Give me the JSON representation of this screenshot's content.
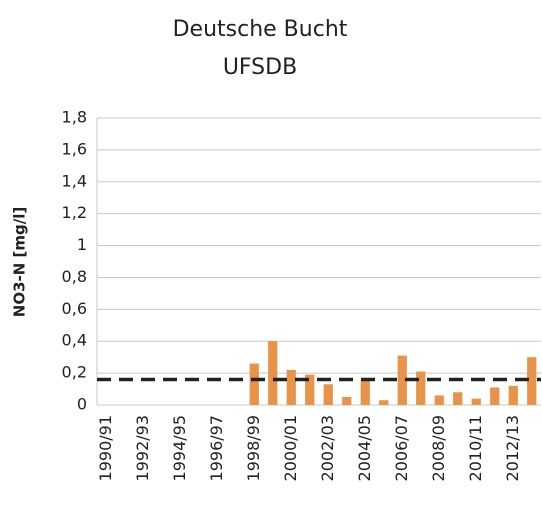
{
  "chart_data": {
    "type": "bar",
    "title": "Deutsche Bucht",
    "subtitle": "UFSDB",
    "y_label": "NO3-N [mg/l]",
    "categories": [
      "1990/91",
      null,
      "1992/93",
      null,
      "1994/95",
      null,
      "1996/97",
      null,
      "1998/99",
      null,
      "2000/01",
      null,
      "2002/03",
      null,
      "2004/05",
      null,
      "2006/07",
      null,
      "2008/09",
      null,
      "2010/11",
      null,
      "2012/13",
      null
    ],
    "values": [
      null,
      null,
      null,
      null,
      null,
      null,
      null,
      null,
      0.26,
      0.4,
      0.22,
      0.19,
      0.13,
      0.05,
      0.15,
      0.03,
      0.31,
      0.21,
      0.06,
      0.08,
      0.04,
      0.11,
      0.12,
      0.3
    ],
    "color": "#e8924a",
    "reference_line": 0.16,
    "reference_color": "#222222",
    "ylim": [
      0,
      1.8
    ],
    "yticks": [
      0,
      {
        "value": 0.2,
        "label": "0,2"
      },
      {
        "value": 0.4,
        "label": "0,4"
      },
      {
        "value": 0.6,
        "label": "0,6"
      },
      {
        "value": 0.8,
        "label": "0,8"
      },
      1,
      {
        "value": 1.2,
        "label": "1,2"
      },
      {
        "value": 1.4,
        "label": "1,4"
      },
      {
        "value": 1.6,
        "label": "1,6"
      },
      {
        "value": 1.8,
        "label": "1,8"
      }
    ],
    "grid": true
  }
}
